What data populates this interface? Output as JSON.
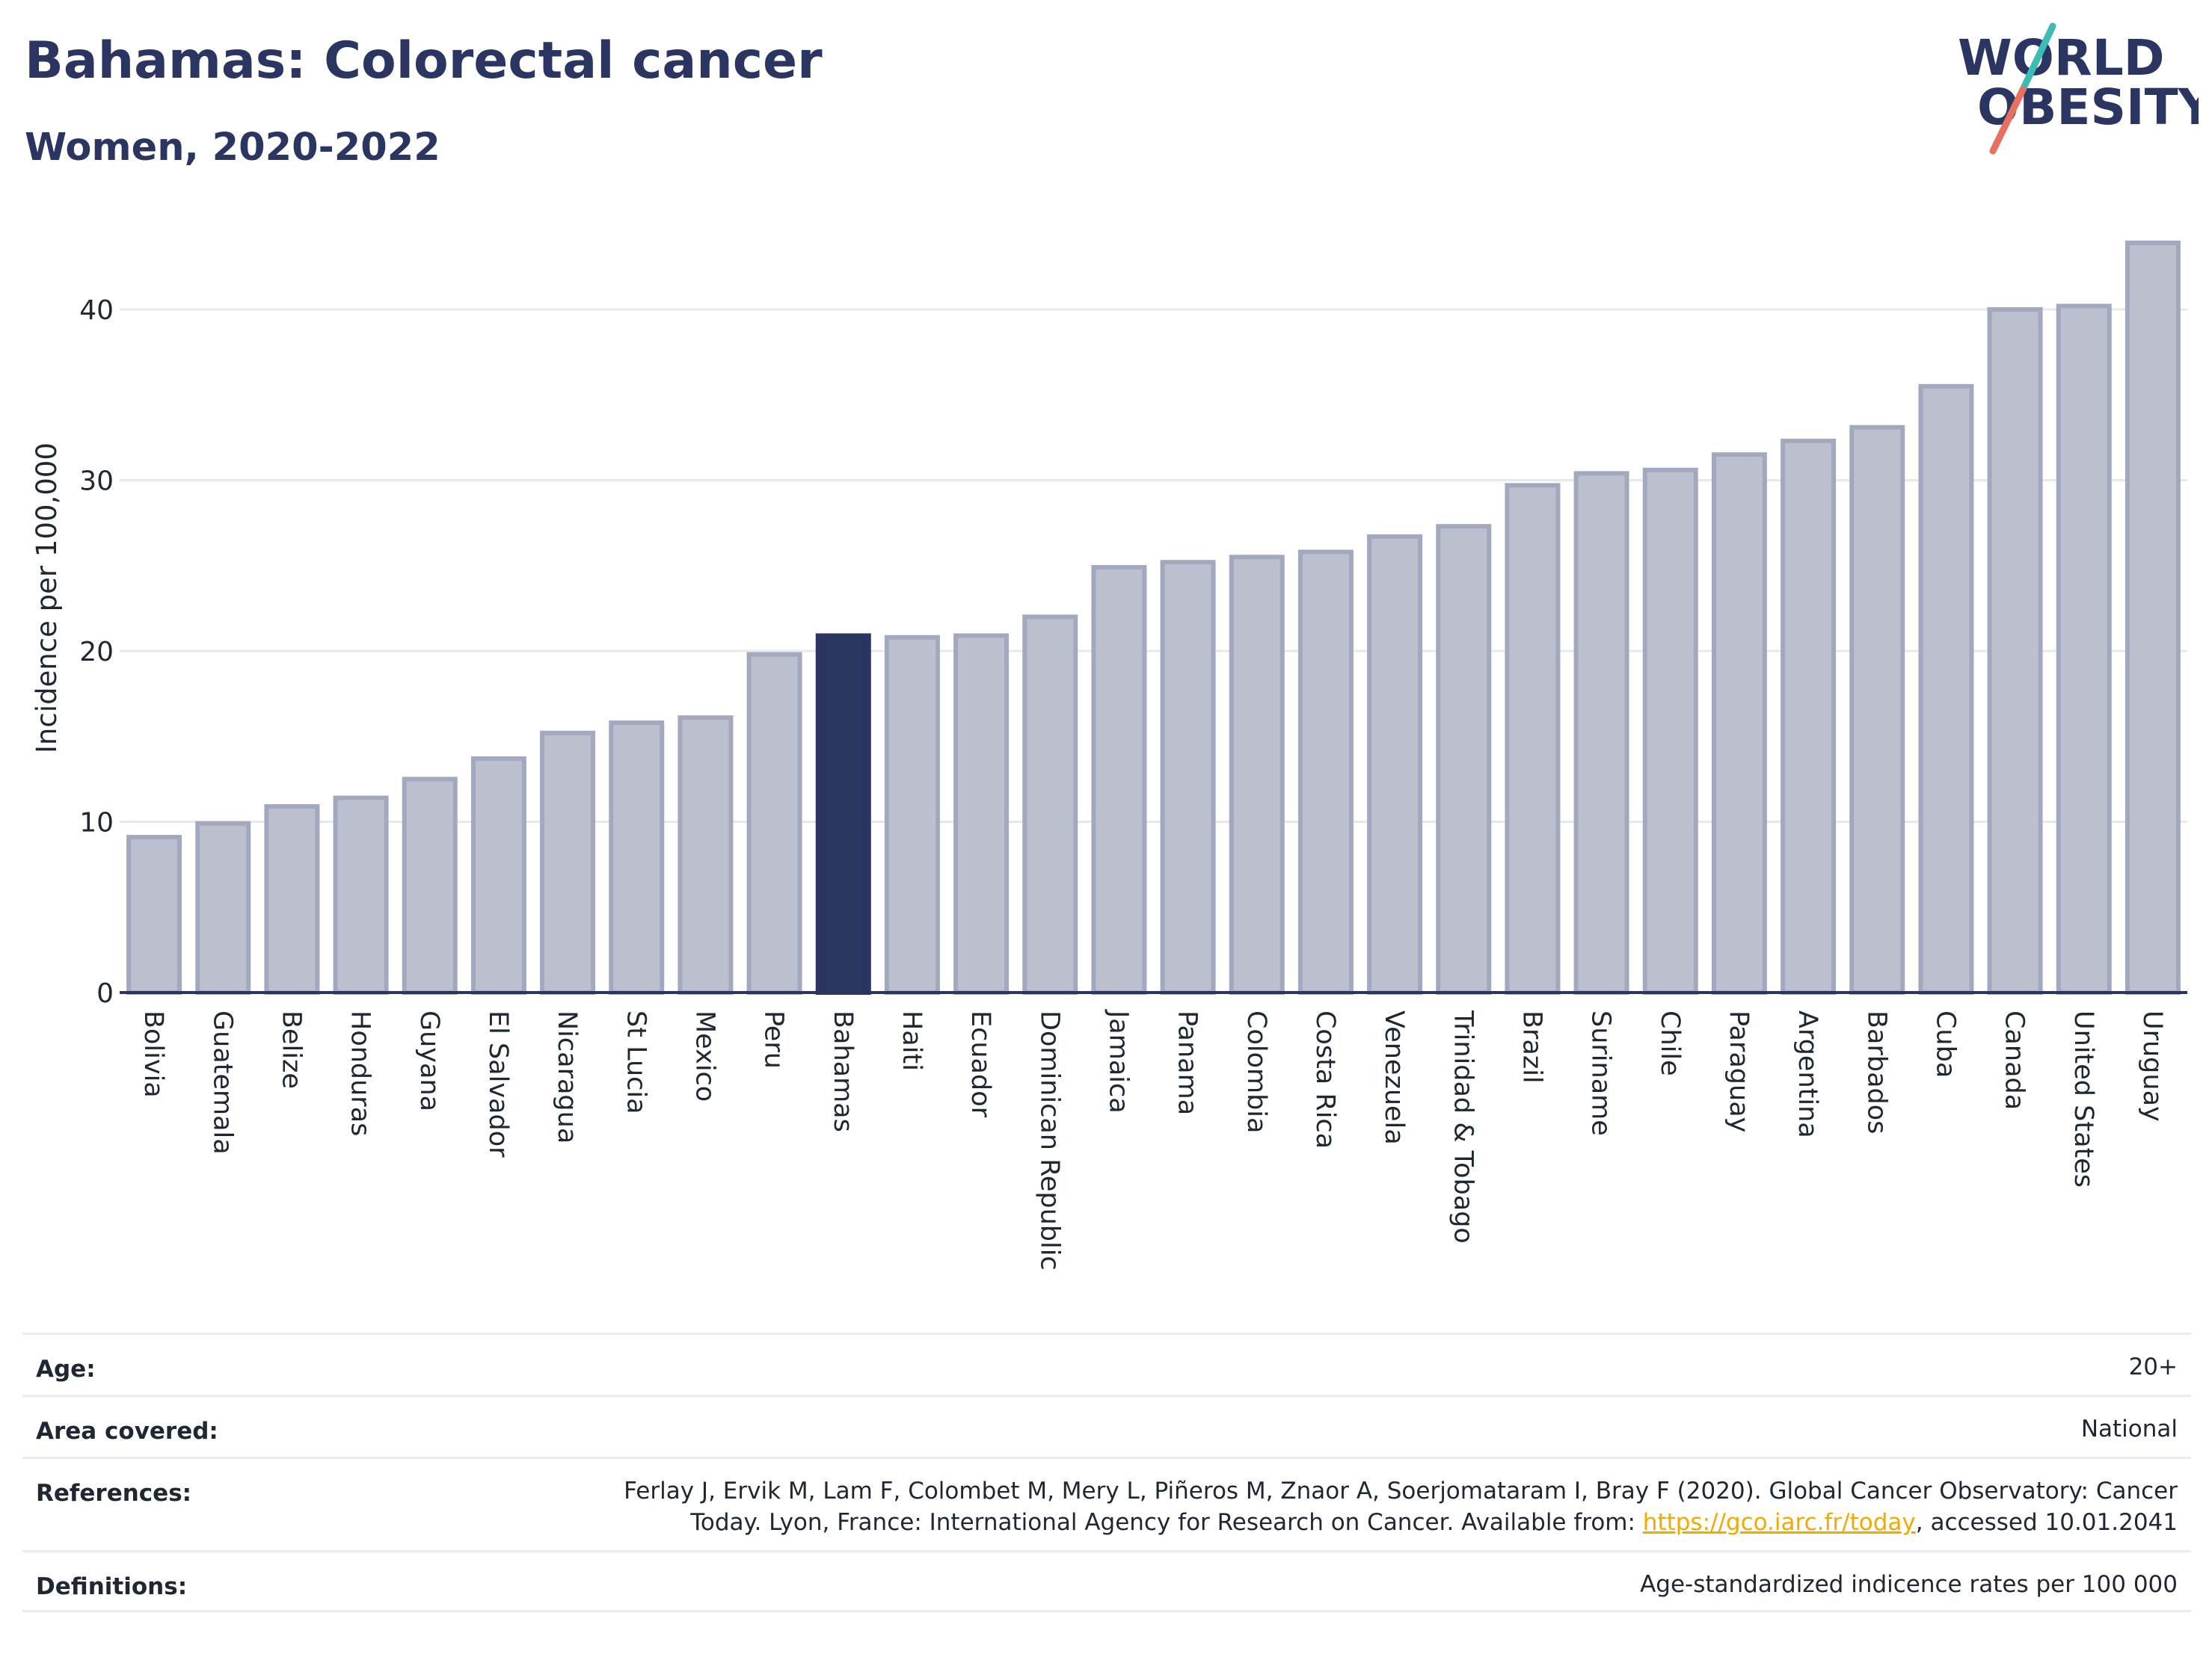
{
  "header": {
    "title": "Bahamas: Colorectal cancer",
    "subtitle": "Women, 2020-2022"
  },
  "logo": {
    "line1": "WORLD",
    "line2": "OBESITY",
    "colors": {
      "text": "#2b3561",
      "teal": "#3cbcb4",
      "coral": "#e8705f"
    }
  },
  "chart_data": {
    "type": "bar",
    "title": "Bahamas: Colorectal cancer",
    "subtitle": "Women, 2020-2022",
    "xlabel": "",
    "ylabel": "Incidence per 100,000",
    "ylim": [
      0,
      44
    ],
    "yticks": [
      0,
      10,
      20,
      30,
      40
    ],
    "grid": true,
    "highlight": "Bahamas",
    "colors": {
      "bar": "#bcc0ce",
      "bar_border": "#a2a8bd",
      "highlight": "#2b3561",
      "grid": "#e6e8ee",
      "axis": "#2b3561"
    },
    "categories": [
      "Bolivia",
      "Guatemala",
      "Belize",
      "Honduras",
      "Guyana",
      "El Salvador",
      "Nicaragua",
      "St Lucia",
      "Mexico",
      "Peru",
      "Bahamas",
      "Haiti",
      "Ecuador",
      "Dominican Republic",
      "Jamaica",
      "Panama",
      "Colombia",
      "Costa Rica",
      "Venezuela",
      "Trinidad & Tobago",
      "Brazil",
      "Suriname",
      "Chile",
      "Paraguay",
      "Argentina",
      "Barbados",
      "Cuba",
      "Canada",
      "United States",
      "Uruguay"
    ],
    "values": [
      9.1,
      9.9,
      10.9,
      11.4,
      12.5,
      13.7,
      15.2,
      15.8,
      16.1,
      19.8,
      20.9,
      20.8,
      20.9,
      22.0,
      24.9,
      25.2,
      25.5,
      25.8,
      26.7,
      27.3,
      29.7,
      30.4,
      30.6,
      31.5,
      32.3,
      33.1,
      35.5,
      40.0,
      40.2,
      43.9
    ]
  },
  "meta": {
    "age_label": "Age:",
    "age_value": "20+",
    "area_label": "Area covered:",
    "area_value": "National",
    "references_label": "References:",
    "references_text": "Ferlay J, Ervik M, Lam F, Colombet M, Mery L, Piñeros M, Znaor A, Soerjomataram I, Bray F (2020). Global Cancer Observatory: Cancer Today. Lyon, France: International Agency for Research on Cancer. Available from: ",
    "references_link": "https://gco.iarc.fr/today",
    "references_suffix": ", accessed 10.01.2041",
    "definitions_label": "Definitions:",
    "definitions_value": "Age-standardized indicence rates per 100 000"
  }
}
